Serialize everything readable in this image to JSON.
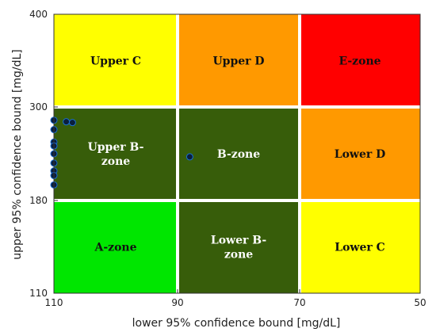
{
  "chart_data": {
    "type": "scatter",
    "xlabel": "lower 95% confidence bound [mg/dL]",
    "ylabel": "upper 95% confidence bound [mg/dL]",
    "x_ticks": [
      110,
      90,
      70,
      50
    ],
    "y_ticks": [
      110,
      180,
      300,
      400
    ],
    "x_boundaries": [
      110,
      90,
      70,
      50
    ],
    "y_boundaries": [
      110,
      180,
      300,
      400
    ],
    "zones": [
      {
        "label": "Upper C",
        "col": 0,
        "row": 0,
        "color": "#ffff00"
      },
      {
        "label": "Upper D",
        "col": 1,
        "row": 0,
        "color": "#ff9900"
      },
      {
        "label": "E-zone",
        "col": 2,
        "row": 0,
        "color": "#ff0000"
      },
      {
        "label": "Upper B-\nzone",
        "col": 0,
        "row": 1,
        "color": "#375d0a"
      },
      {
        "label": "B-zone",
        "col": 1,
        "row": 1,
        "color": "#375d0a"
      },
      {
        "label": "Lower D",
        "col": 2,
        "row": 1,
        "color": "#ff9900"
      },
      {
        "label": "A-zone",
        "col": 0,
        "row": 2,
        "color": "#00e600"
      },
      {
        "label": "Lower B-\nzone",
        "col": 1,
        "row": 2,
        "color": "#375d0a"
      },
      {
        "label": "Lower C",
        "col": 2,
        "row": 2,
        "color": "#ffff00"
      }
    ],
    "points": [
      {
        "x": 110,
        "y": 283
      },
      {
        "x": 110,
        "y": 271
      },
      {
        "x": 110,
        "y": 255
      },
      {
        "x": 110,
        "y": 250
      },
      {
        "x": 110,
        "y": 240
      },
      {
        "x": 110,
        "y": 228
      },
      {
        "x": 110,
        "y": 218
      },
      {
        "x": 110,
        "y": 212
      },
      {
        "x": 110,
        "y": 200
      },
      {
        "x": 108,
        "y": 281
      },
      {
        "x": 107,
        "y": 280
      },
      {
        "x": 88,
        "y": 236
      }
    ],
    "point_color": "#0a1f3d"
  }
}
